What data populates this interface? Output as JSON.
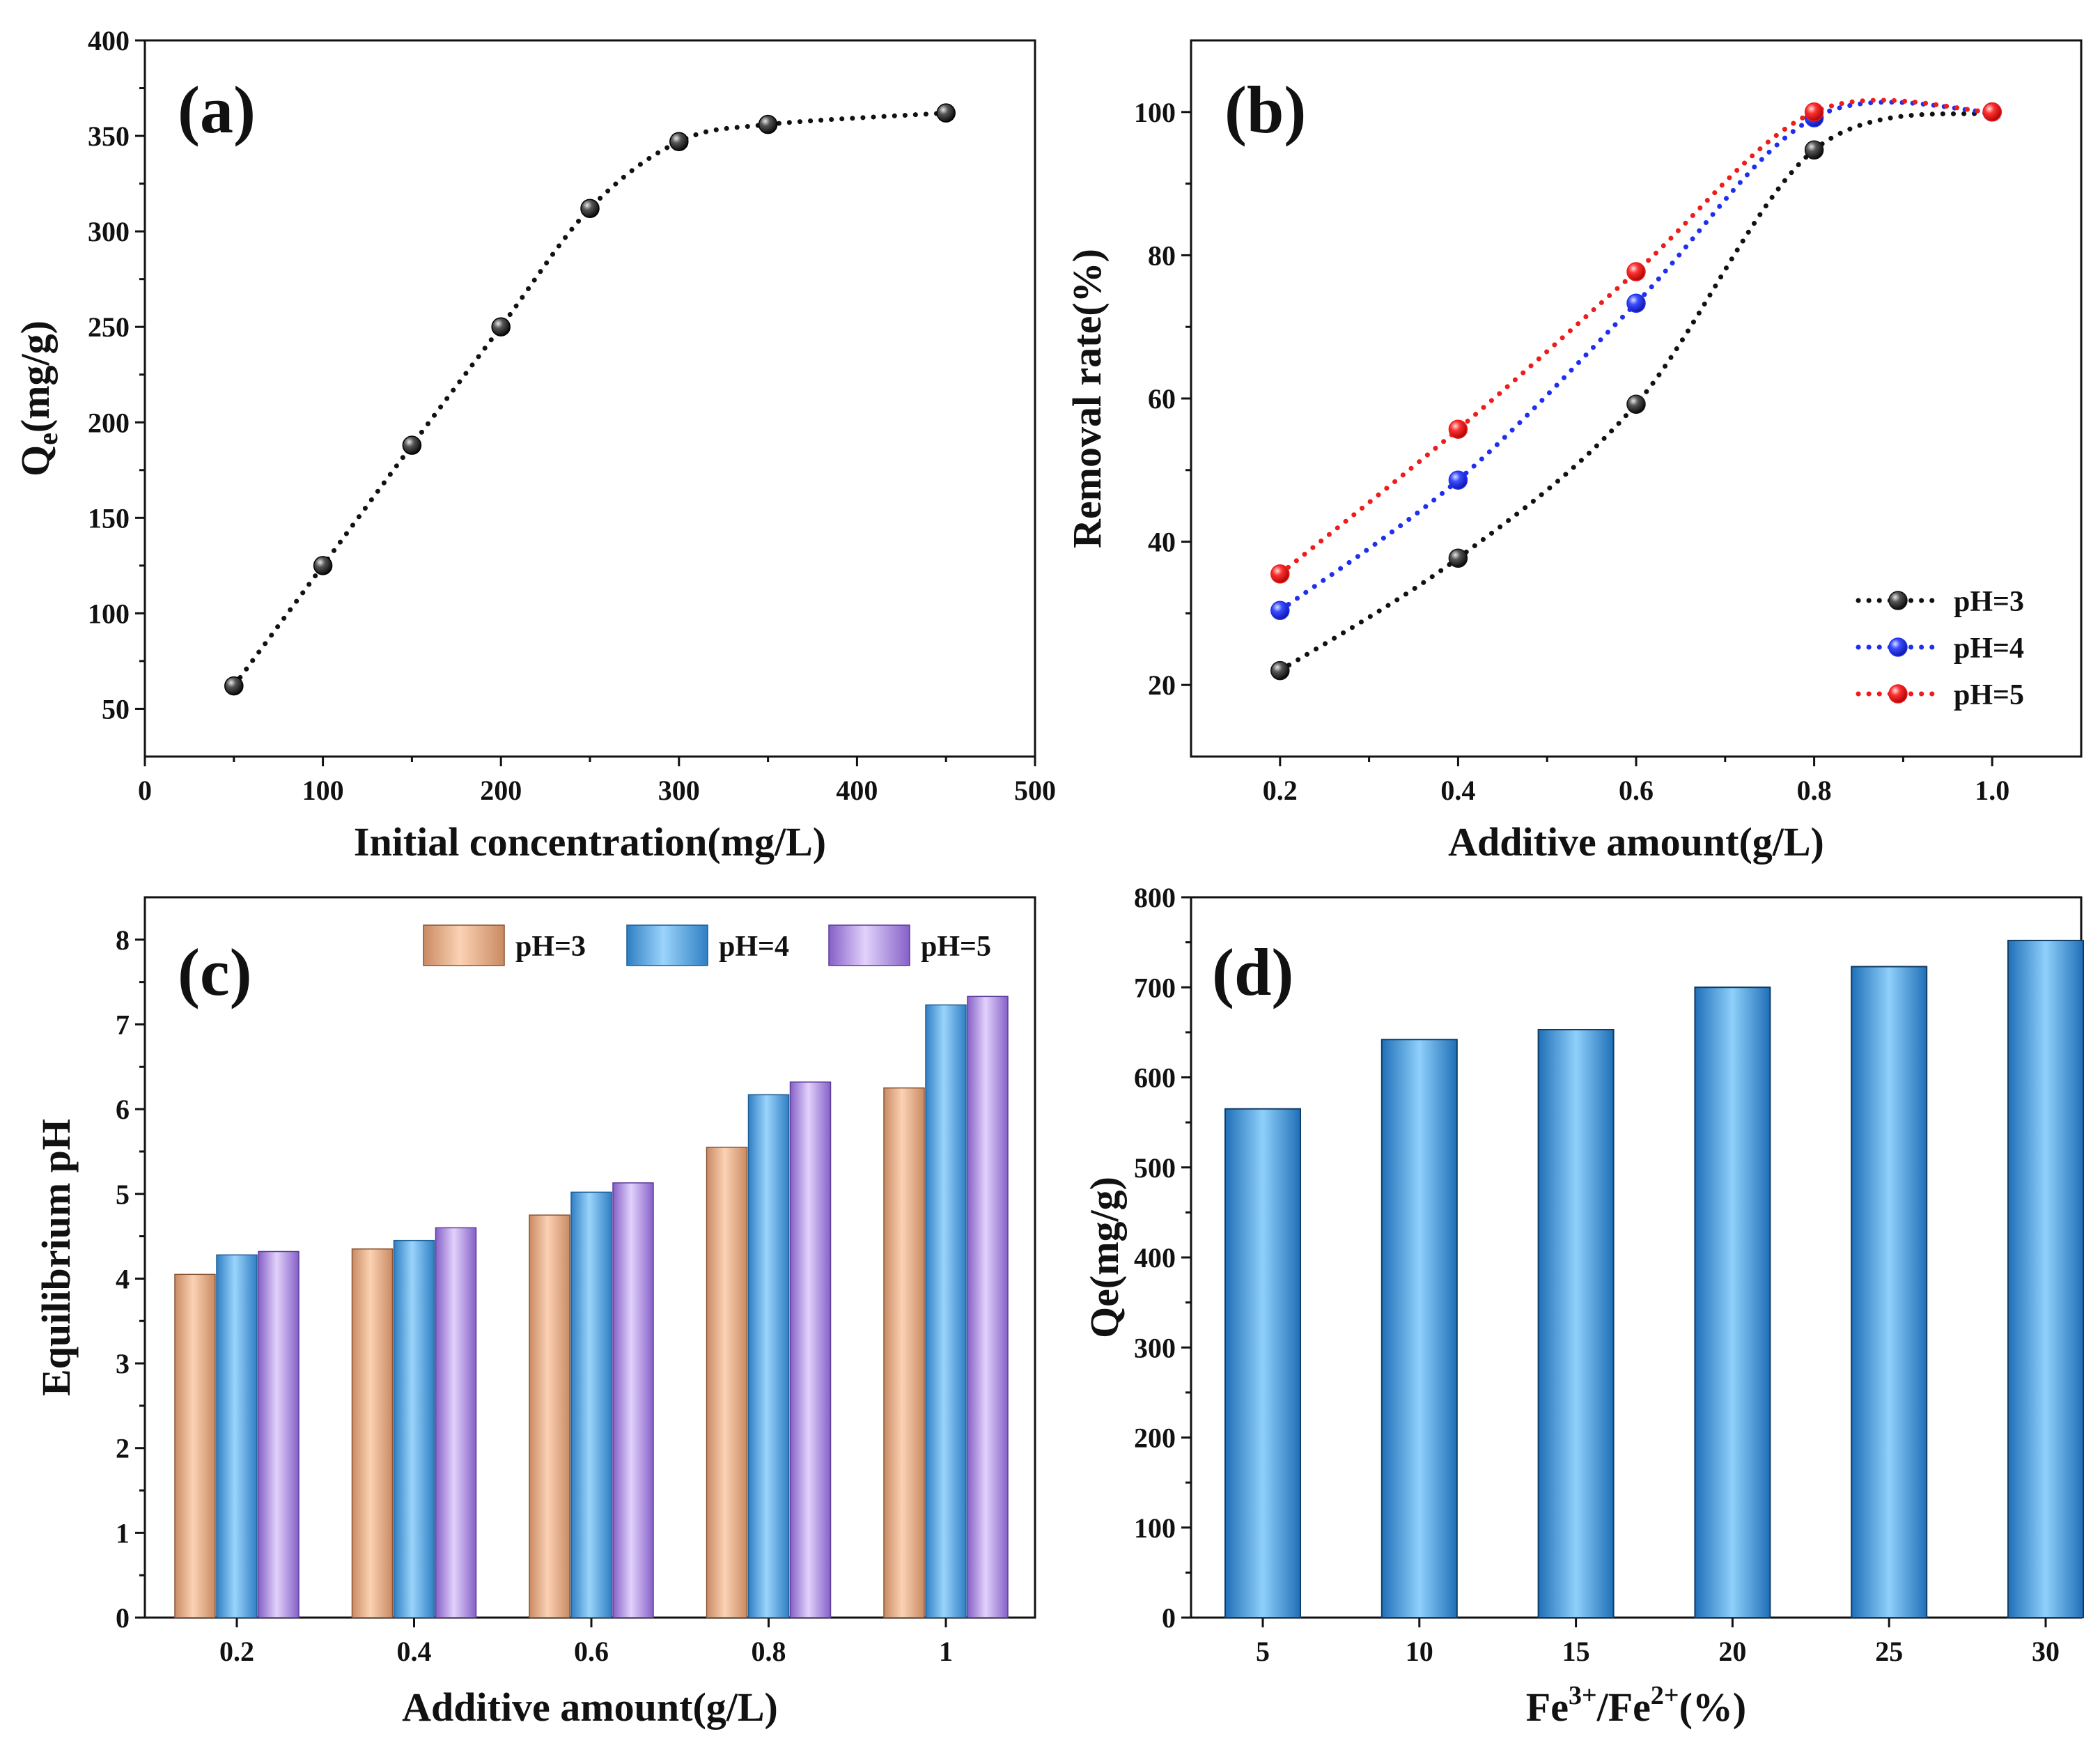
{
  "colors": {
    "black": "#111111",
    "blue": "#1f2ff0",
    "red": "#ee1c1c",
    "bar_ph3": "#f0b48c",
    "bar_ph4": "#5aace6",
    "bar_ph5": "#b696ea",
    "bar_d": "#4aa8e8"
  },
  "chart_data": [
    {
      "type": "scatter",
      "panel": "(a)",
      "title": "",
      "xlabel": "Initial concentration(mg/L)",
      "ylabel_main": "Q",
      "ylabel_sub": "e",
      "ylabel_rest": "(mg/g)",
      "xlim": [
        0,
        500
      ],
      "ylim": [
        25,
        400
      ],
      "xticks": [
        0,
        100,
        200,
        300,
        400,
        500
      ],
      "yticks": [
        50,
        100,
        150,
        200,
        250,
        300,
        350,
        400
      ],
      "x": [
        50,
        100,
        150,
        200,
        250,
        300,
        350,
        450
      ],
      "y": [
        62,
        125,
        188,
        250,
        312,
        347,
        356,
        362
      ]
    },
    {
      "type": "line",
      "panel": "(b)",
      "title": "",
      "xlabel": "Additive amount(g/L)",
      "ylabel": "Removal rate(%)",
      "xlim": [
        0.1,
        1.1
      ],
      "ylim": [
        10,
        110
      ],
      "xticks": [
        0.2,
        0.4,
        0.6,
        0.8,
        1.0
      ],
      "xtick_labels": [
        "0.2",
        "0.4",
        "0.6",
        "0.8",
        "1.0"
      ],
      "yticks": [
        20,
        40,
        60,
        80,
        100
      ],
      "x": [
        0.2,
        0.4,
        0.6,
        0.8,
        1.0
      ],
      "legend_position": "bottom-right",
      "series": [
        {
          "name": "pH=3",
          "values": [
            22,
            37.7,
            59.2,
            94.7,
            100
          ]
        },
        {
          "name": "pH=4",
          "values": [
            30.4,
            48.6,
            73.3,
            99.2,
            100
          ]
        },
        {
          "name": "pH=5",
          "values": [
            35.5,
            55.7,
            77.7,
            100,
            100
          ]
        }
      ]
    },
    {
      "type": "bar",
      "panel": "(c)",
      "title": "",
      "xlabel": "Additive amount(g/L)",
      "ylabel": "Equilibrium pH",
      "ylim": [
        0,
        8.5
      ],
      "yticks": [
        0,
        1,
        2,
        3,
        4,
        5,
        6,
        7,
        8
      ],
      "categories": [
        "0.2",
        "0.4",
        "0.6",
        "0.8",
        "1"
      ],
      "legend_position": "top-right",
      "series": [
        {
          "name": "pH=3",
          "values": [
            4.05,
            4.35,
            4.75,
            5.55,
            6.25
          ]
        },
        {
          "name": "pH=4",
          "values": [
            4.28,
            4.45,
            5.02,
            6.17,
            7.23
          ]
        },
        {
          "name": "pH=5",
          "values": [
            4.32,
            4.6,
            5.13,
            6.32,
            7.33
          ]
        }
      ]
    },
    {
      "type": "bar",
      "panel": "(d)",
      "title": "",
      "xlabel_main": "Fe",
      "xlabel_sup1": "3+",
      "xlabel_mid": "/Fe",
      "xlabel_sup2": "2+",
      "xlabel_rest": "(%)",
      "ylabel": "Qe(mg/g)",
      "ylim": [
        0,
        800
      ],
      "yticks": [
        0,
        100,
        200,
        300,
        400,
        500,
        600,
        700,
        800
      ],
      "categories": [
        "5",
        "10",
        "15",
        "20",
        "25",
        "30"
      ],
      "values": [
        565,
        642,
        653,
        700,
        723,
        752
      ]
    }
  ]
}
